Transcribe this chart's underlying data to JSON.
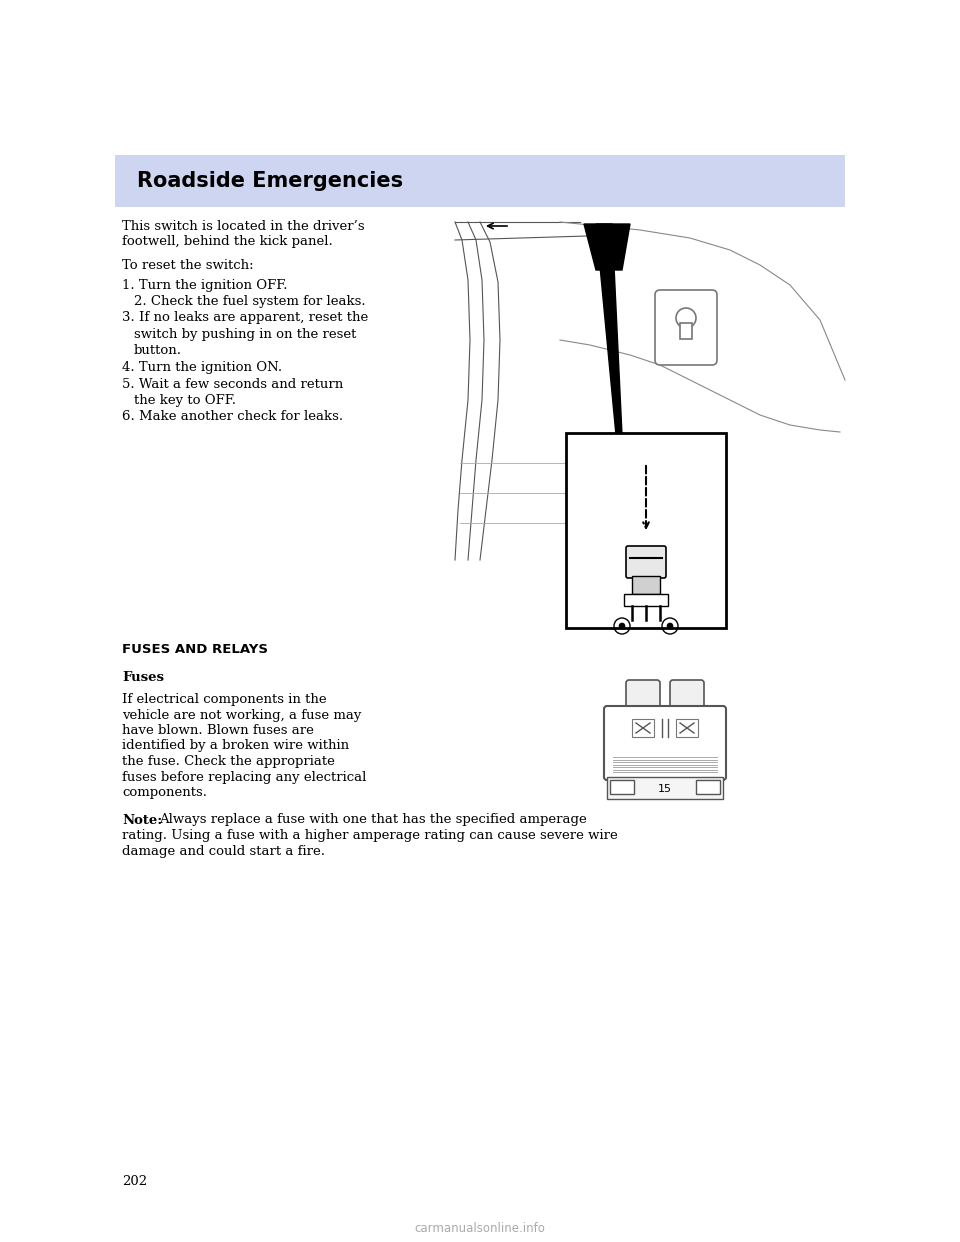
{
  "page_bg": "#ffffff",
  "header_bg": "#cdd5f0",
  "header_text": "Roadside Emergencies",
  "header_text_color": "#000000",
  "header_fontsize": 15,
  "body_text_color": "#000000",
  "body_fontsize": 9.5,
  "page_number": "202",
  "para1_line1": "This switch is located in the driver’s",
  "para1_line2": "footwell, behind the kick panel.",
  "para2": "To reset the switch:",
  "items": [
    "1. Turn the ignition OFF.",
    "2. Check the fuel system for leaks.",
    "3. If no leaks are apparent, reset the",
    "switch by pushing in on the reset",
    "button.",
    "4. Turn the ignition ON.",
    "5. Wait a few seconds and return",
    "the key to OFF.",
    "6. Make another check for leaks."
  ],
  "item_indent": [
    0,
    1,
    0,
    1,
    1,
    0,
    0,
    1,
    0
  ],
  "section_fuses": "FUSES AND RELAYS",
  "subsection_fuses": "Fuses",
  "fuses_lines": [
    "If electrical components in the",
    "vehicle are not working, a fuse may",
    "have blown. Blown fuses are",
    "identified by a broken wire within",
    "the fuse. Check the appropriate",
    "fuses before replacing any electrical",
    "components."
  ],
  "note_line1": "Always replace a fuse with one that has the specified amperage",
  "note_line2": "rating. Using a fuse with a higher amperage rating can cause severe wire",
  "note_line3": "damage and could start a fire.",
  "watermark": "carmanualsonline.info"
}
